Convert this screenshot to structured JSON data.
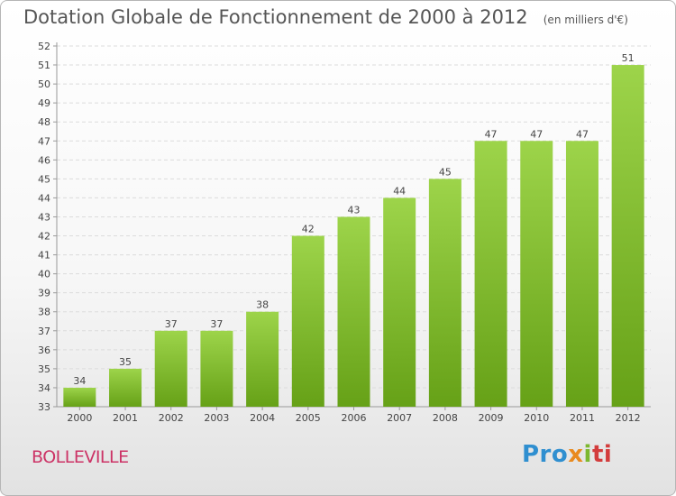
{
  "header": {
    "title": "Dotation Globale de Fonctionnement de 2000 à 2012",
    "subtitle": "(en milliers d'€)"
  },
  "footer": {
    "place": "BOLLEVILLE",
    "logo": {
      "p1": "Pro",
      "p2": "x",
      "p3": "i",
      "p4": "ti"
    }
  },
  "colors": {
    "bar_light": "#9dd44a",
    "bar_dark": "#66a117",
    "grid": "#dcdcdc",
    "text": "#444444"
  },
  "chart_data": {
    "type": "bar",
    "title": "Dotation Globale de Fonctionnement de 2000 à 2012",
    "subtitle": "(en milliers d'€)",
    "categories": [
      "2000",
      "2001",
      "2002",
      "2003",
      "2004",
      "2005",
      "2006",
      "2007",
      "2008",
      "2009",
      "2010",
      "2011",
      "2012"
    ],
    "values": [
      34,
      35,
      37,
      37,
      38,
      42,
      43,
      44,
      45,
      47,
      47,
      47,
      51
    ],
    "data_labels": [
      "34",
      "35",
      "37",
      "37",
      "38",
      "42",
      "43",
      "44",
      "45",
      "47",
      "47",
      "47",
      "51"
    ],
    "ylim": [
      33,
      52
    ],
    "yticks": [
      33,
      34,
      35,
      36,
      37,
      38,
      39,
      40,
      41,
      42,
      43,
      44,
      45,
      46,
      47,
      48,
      49,
      50,
      51,
      52
    ],
    "grid": true,
    "legend": "none"
  }
}
